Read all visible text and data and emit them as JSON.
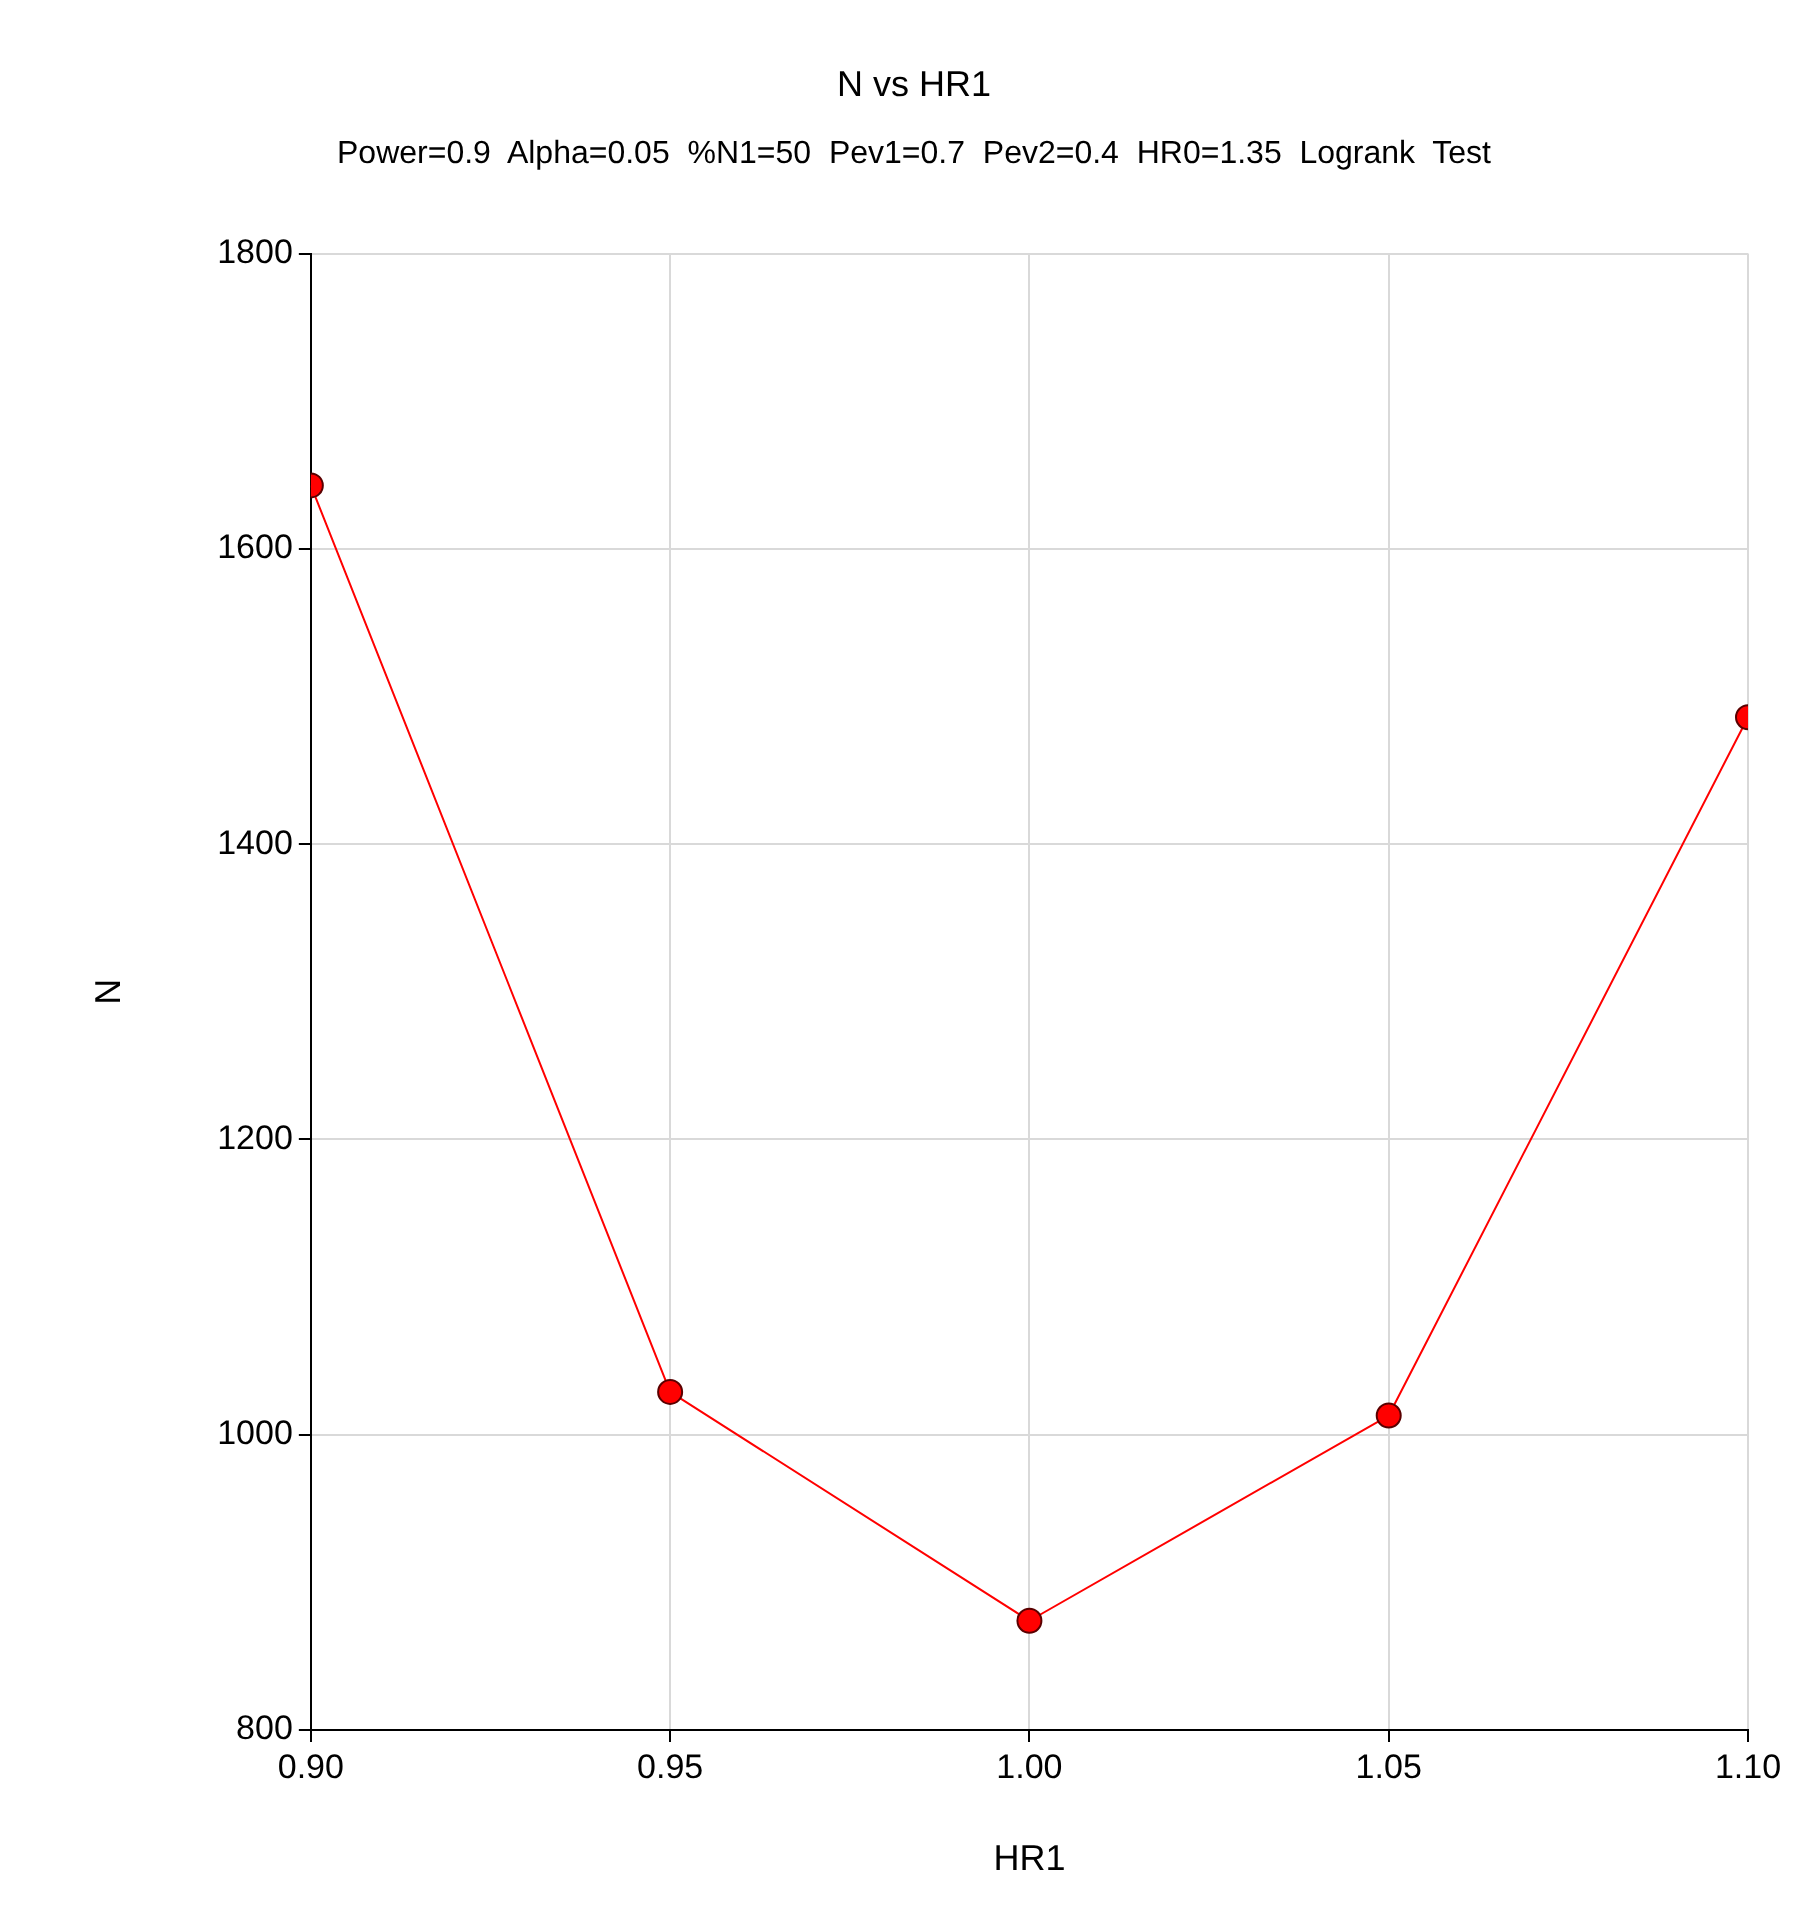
{
  "chart_data": {
    "type": "line",
    "title": "N vs HR1",
    "subtitle": "Power=0.9  Alpha=0.05  %N1=50  Pev1=0.7  Pev2=0.4  HR0=1.35  Logrank  Test",
    "xlabel": "HR1",
    "ylabel": "N",
    "x": [
      0.9,
      0.95,
      1.0,
      1.05,
      1.1
    ],
    "series": [
      {
        "color": "#ff0000",
        "values": [
          1643,
          1029,
          874,
          1013,
          1486
        ]
      }
    ],
    "xlim": [
      0.9,
      1.1
    ],
    "xticks": [
      {
        "value": 0.9,
        "label": "0.90"
      },
      {
        "value": 0.95,
        "label": "0.95"
      },
      {
        "value": 1.0,
        "label": "1.00"
      },
      {
        "value": 1.05,
        "label": "1.05"
      },
      {
        "value": 1.1,
        "label": "1.10"
      }
    ],
    "ylim": [
      800,
      1800
    ],
    "yticks": [
      800,
      1000,
      1200,
      1400,
      1600,
      1800
    ],
    "grid": true,
    "legend": false,
    "marker": "circle",
    "line_style": "solid"
  }
}
